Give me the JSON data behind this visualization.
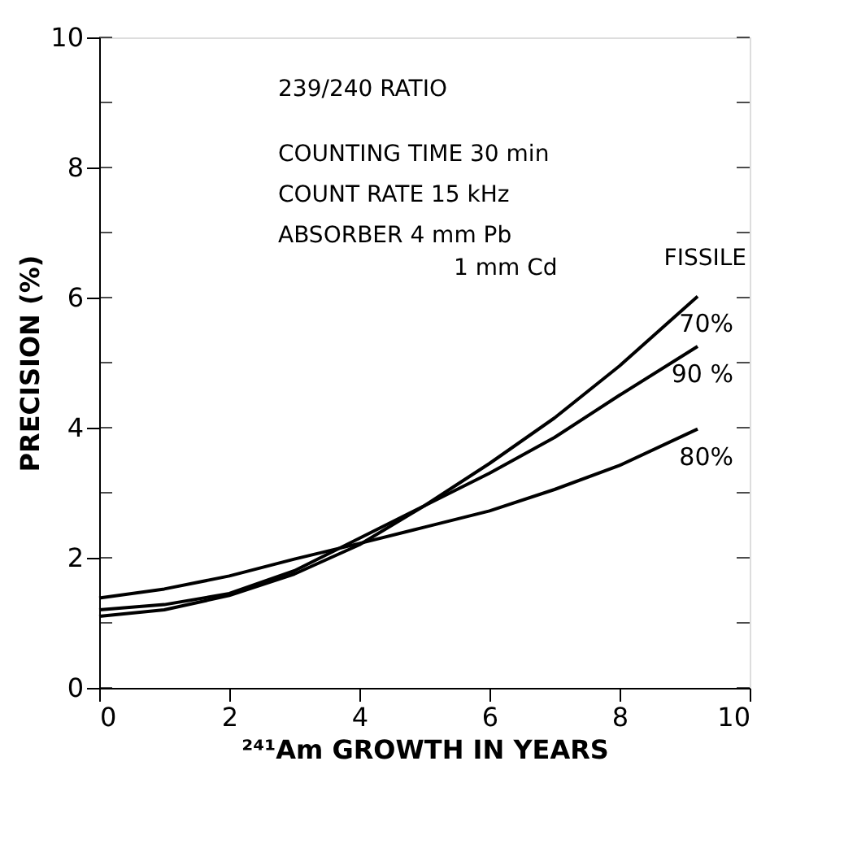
{
  "chart_data": {
    "type": "line",
    "xlabel": "²⁴¹Am GROWTH IN YEARS",
    "ylabel": "PRECISION (%)",
    "x": [
      0,
      1,
      2,
      3,
      4,
      5,
      6,
      7,
      8,
      9.2
    ],
    "series": [
      {
        "name": "70%",
        "color": "#000000",
        "values": [
          1.1,
          1.2,
          1.42,
          1.75,
          2.2,
          2.8,
          3.45,
          4.15,
          4.95,
          6.02
        ]
      },
      {
        "name": "90 %",
        "color": "#000000",
        "values": [
          1.2,
          1.28,
          1.45,
          1.8,
          2.3,
          2.8,
          3.3,
          3.85,
          4.5,
          5.25
        ]
      },
      {
        "name": "80%",
        "color": "#000000",
        "values": [
          1.38,
          1.52,
          1.72,
          1.98,
          2.22,
          2.47,
          2.72,
          3.05,
          3.42,
          3.98
        ]
      }
    ],
    "annotations": [
      "239/240  RATIO",
      "COUNTING TIME  30 min",
      "COUNT RATE       15 kHz",
      "ABSORBER           4 mm  Pb",
      "1 mm  Cd",
      "FISSILE"
    ],
    "xlim": [
      0,
      10
    ],
    "xticks": [
      0,
      2,
      4,
      6,
      8,
      10
    ],
    "ylim": [
      0,
      10
    ],
    "yticks": [
      0,
      {
        "value": 1,
        "label": null
      },
      2,
      {
        "value": 3,
        "label": null
      },
      4,
      {
        "value": 5,
        "label": null
      },
      6,
      {
        "value": 7,
        "label": null
      },
      8,
      {
        "value": 9,
        "label": null
      },
      10
    ],
    "grid": false,
    "legend": "right",
    "marker": "none",
    "line_style": "solid"
  }
}
